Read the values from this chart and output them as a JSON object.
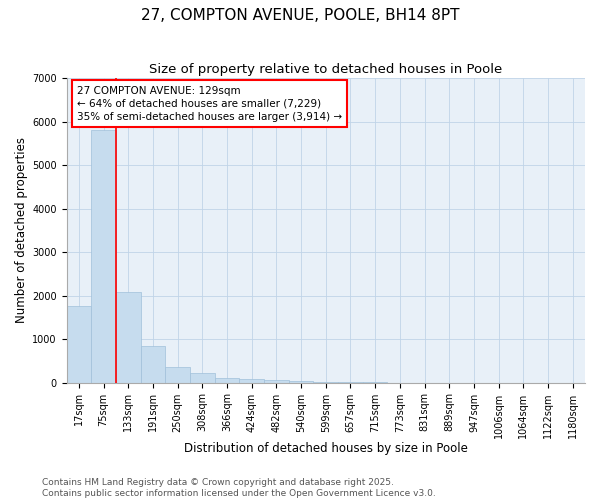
{
  "title_line1": "27, COMPTON AVENUE, POOLE, BH14 8PT",
  "title_line2": "Size of property relative to detached houses in Poole",
  "xlabel": "Distribution of detached houses by size in Poole",
  "ylabel": "Number of detached properties",
  "categories": [
    "17sqm",
    "75sqm",
    "133sqm",
    "191sqm",
    "250sqm",
    "308sqm",
    "366sqm",
    "424sqm",
    "482sqm",
    "540sqm",
    "599sqm",
    "657sqm",
    "715sqm",
    "773sqm",
    "831sqm",
    "889sqm",
    "947sqm",
    "1006sqm",
    "1064sqm",
    "1122sqm",
    "1180sqm"
  ],
  "values": [
    1750,
    5800,
    2080,
    830,
    360,
    210,
    100,
    75,
    50,
    35,
    20,
    10,
    5,
    0,
    0,
    0,
    0,
    0,
    0,
    0,
    0
  ],
  "bar_color": "#c6dcee",
  "bar_edge_color": "#a0c0da",
  "vline_x": 1.5,
  "vline_color": "red",
  "annotation_box_text": "27 COMPTON AVENUE: 129sqm\n← 64% of detached houses are smaller (7,229)\n35% of semi-detached houses are larger (3,914) →",
  "ylim": [
    0,
    7000
  ],
  "yticks": [
    0,
    1000,
    2000,
    3000,
    4000,
    5000,
    6000,
    7000
  ],
  "grid_color": "#c0d4e8",
  "bg_color": "#e8f0f8",
  "footnote": "Contains HM Land Registry data © Crown copyright and database right 2025.\nContains public sector information licensed under the Open Government Licence v3.0.",
  "title_fontsize": 11,
  "subtitle_fontsize": 9.5,
  "label_fontsize": 8.5,
  "tick_fontsize": 7,
  "footnote_fontsize": 6.5,
  "ann_fontsize": 7.5
}
